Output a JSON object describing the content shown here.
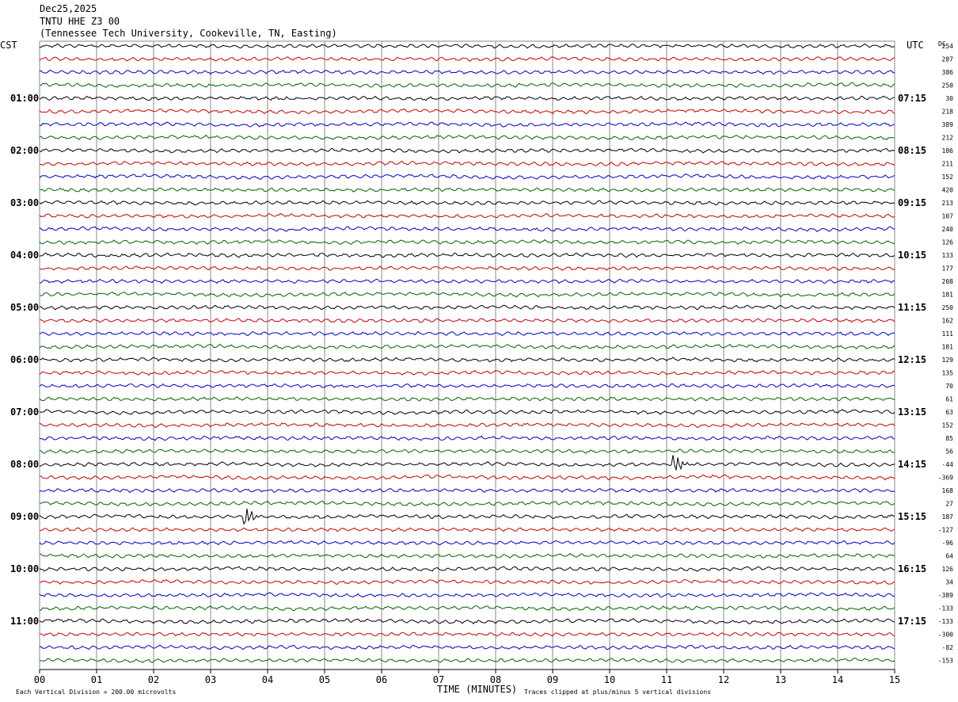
{
  "header": {
    "date": "Dec25,2025",
    "station": "TNTU HHE Z3 00",
    "location": "(Tennessee Tech University, Cookeville, TN, Easting)"
  },
  "left_tz": "CST",
  "right_tz": "UTC",
  "dc_label": "DC",
  "chart_data": {
    "type": "line",
    "subtype": "helicorder",
    "xlabel": "TIME (MINUTES)",
    "x_ticks": [
      "00",
      "01",
      "02",
      "03",
      "04",
      "05",
      "06",
      "07",
      "08",
      "09",
      "10",
      "11",
      "12",
      "13",
      "14",
      "15"
    ],
    "xlim": [
      0,
      15
    ],
    "rows_per_hour": 4,
    "row_count": 48,
    "trace_colors": [
      "#000000",
      "#cc0000",
      "#0000cc",
      "#006600"
    ],
    "left_hour_labels": [
      "01:00",
      "02:00",
      "03:00",
      "04:00",
      "05:00",
      "06:00",
      "07:00",
      "08:00",
      "09:00",
      "10:00",
      "11:00"
    ],
    "right_hour_labels": [
      "07:15",
      "08:15",
      "09:15",
      "10:15",
      "11:15",
      "12:15",
      "13:15",
      "14:15",
      "15:15",
      "16:15",
      "17:15"
    ],
    "dc_offsets": [
      "254",
      "287",
      "386",
      "250",
      "30",
      "218",
      "389",
      "212",
      "186",
      "211",
      "152",
      "420",
      "213",
      "107",
      "240",
      "126",
      "133",
      "177",
      "208",
      "181",
      "250",
      "162",
      "111",
      "181",
      "129",
      "135",
      "70",
      "61",
      "63",
      "152",
      "85",
      "56",
      "-44",
      "-369",
      "168",
      "27",
      "187",
      "-127",
      "-96",
      "64",
      "126",
      "34",
      "-389",
      "-133",
      "-133",
      "-300",
      "-82",
      "-153"
    ],
    "events": [
      {
        "row": 32,
        "minute": 11.15,
        "amplitude": "large"
      },
      {
        "row": 36,
        "minute": 3.62,
        "amplitude": "large"
      }
    ],
    "grid": true
  },
  "footer": {
    "scale_note": "Each Vertical Division =  200.00 microvolts",
    "clip_note": "Traces clipped at plus/minus 5 vertical divisions"
  }
}
